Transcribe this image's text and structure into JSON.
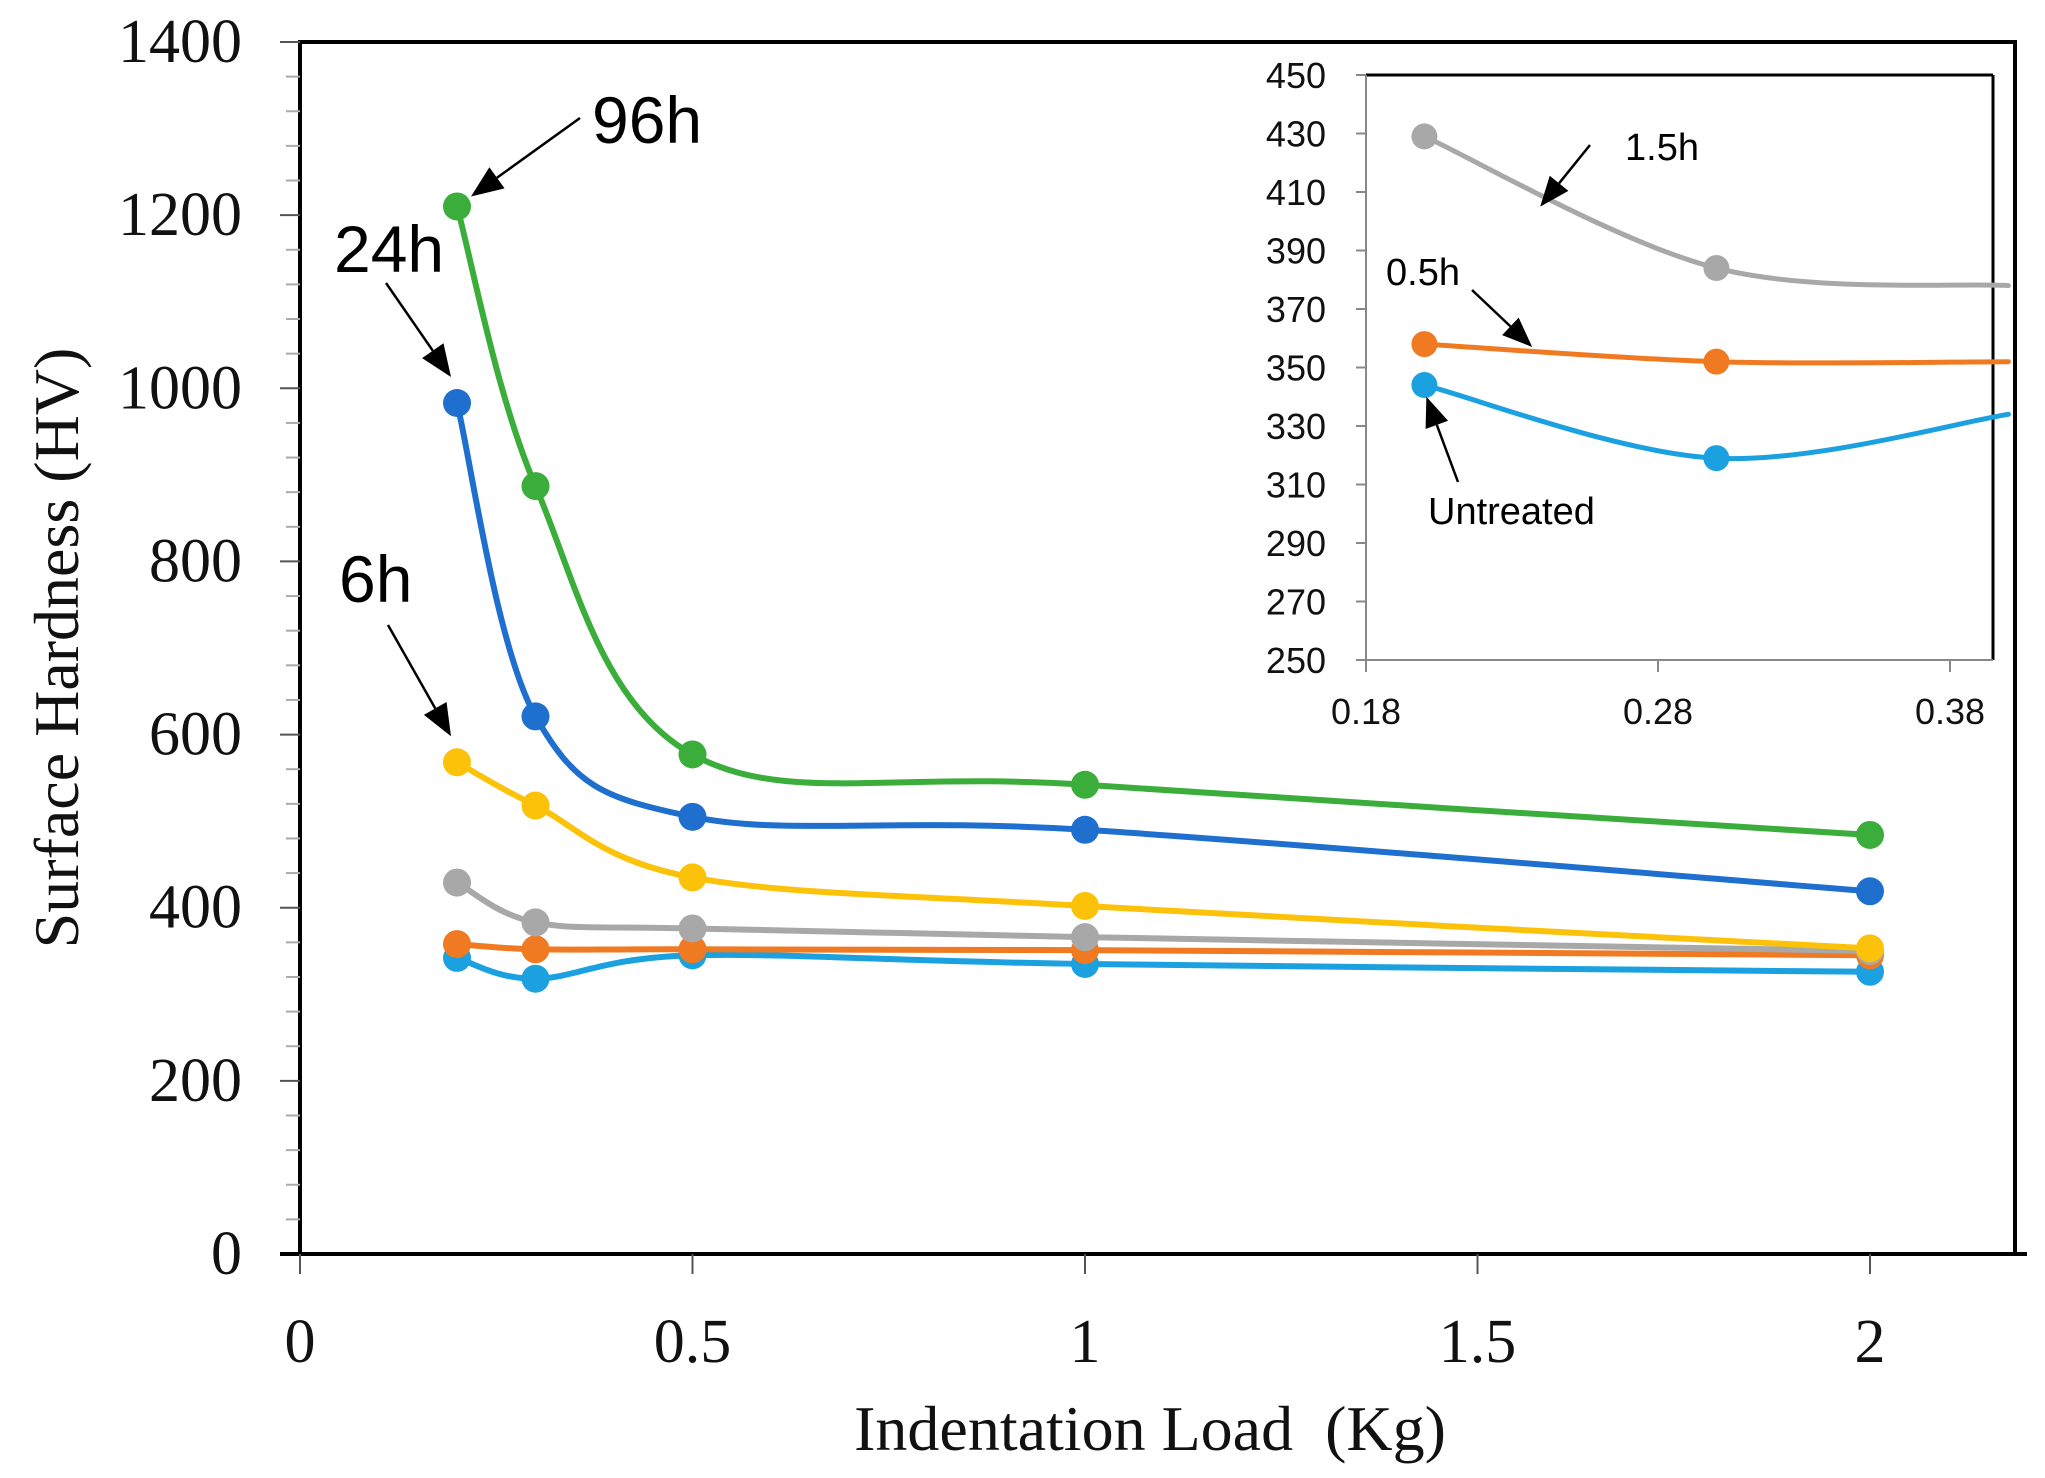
{
  "chart_data": [
    {
      "type": "line",
      "title": "",
      "xlabel": "Indentation Load  (Kg)",
      "ylabel": "Surface Hardness (HV)",
      "xlim": [
        0,
        2.2
      ],
      "ylim": [
        0,
        1400
      ],
      "x_ticks": [
        0,
        0.5,
        1,
        1.5,
        2
      ],
      "x_tick_labels": [
        "0",
        "0.5",
        "1",
        "1.5",
        "2"
      ],
      "y_ticks": [
        0,
        200,
        400,
        600,
        800,
        1000,
        1200,
        1400
      ],
      "y_tick_labels": [
        "0",
        "200",
        "400",
        "600",
        "800",
        "1000",
        "1200",
        "1400"
      ],
      "grid": false,
      "series": [
        {
          "name": "Untreated",
          "color": "#1ba0e0",
          "x": [
            0.2,
            0.3,
            0.5,
            1,
            2
          ],
          "y": [
            342,
            318,
            345,
            335,
            326
          ]
        },
        {
          "name": "0.5h",
          "color": "#f07a22",
          "x": [
            0.2,
            0.3,
            0.5,
            1,
            2
          ],
          "y": [
            358,
            352,
            352,
            351,
            345
          ]
        },
        {
          "name": "1.5h",
          "color": "#a8a8a8",
          "x": [
            0.2,
            0.3,
            0.5,
            1,
            2
          ],
          "y": [
            429,
            383,
            376,
            366,
            350
          ]
        },
        {
          "name": "6h",
          "color": "#fcc20a",
          "x": [
            0.2,
            0.3,
            0.5,
            1,
            2
          ],
          "y": [
            568,
            518,
            435,
            402,
            353
          ]
        },
        {
          "name": "24h",
          "color": "#1f6fcf",
          "x": [
            0.2,
            0.3,
            0.5,
            1,
            2
          ],
          "y": [
            983,
            621,
            505,
            490,
            419
          ]
        },
        {
          "name": "96h",
          "color": "#3aad3a",
          "x": [
            0.2,
            0.3,
            0.5,
            1,
            2
          ],
          "y": [
            1210,
            887,
            577,
            542,
            484
          ]
        }
      ],
      "annotations": [
        {
          "text": "96h",
          "points_to": {
            "x": 0.2,
            "y": 1210
          }
        },
        {
          "text": "24h",
          "points_to": {
            "x": 0.2,
            "y": 983
          }
        },
        {
          "text": "6h",
          "points_to": {
            "x": 0.2,
            "y": 568
          }
        }
      ]
    },
    {
      "type": "line",
      "title": "inset",
      "xlabel": "",
      "ylabel": "",
      "xlim": [
        0.18,
        0.4
      ],
      "ylim": [
        250,
        450
      ],
      "x_ticks": [
        0.18,
        0.28,
        0.38
      ],
      "x_tick_labels": [
        "0.18",
        "0.28",
        "0.38"
      ],
      "y_ticks": [
        250,
        270,
        290,
        310,
        330,
        350,
        370,
        390,
        410,
        430,
        450
      ],
      "y_tick_labels": [
        "250",
        "270",
        "290",
        "310",
        "330",
        "350",
        "370",
        "390",
        "410",
        "430",
        "450"
      ],
      "grid": false,
      "series": [
        {
          "name": "1.5h",
          "color": "#a8a8a8",
          "x": [
            0.2,
            0.3,
            0.4
          ],
          "y": [
            429,
            384,
            378
          ]
        },
        {
          "name": "0.5h",
          "color": "#f07a22",
          "x": [
            0.2,
            0.3,
            0.4
          ],
          "y": [
            358,
            352,
            352
          ]
        },
        {
          "name": "Untreated",
          "color": "#1ba0e0",
          "x": [
            0.2,
            0.3,
            0.4
          ],
          "y": [
            344,
            319,
            334
          ]
        }
      ],
      "markers_on_x": [
        0.2,
        0.3
      ],
      "annotations": [
        {
          "text": "1.5h",
          "points_to": {
            "x": 0.24,
            "y": 405
          }
        },
        {
          "text": "0.5h",
          "points_to": {
            "x": 0.24,
            "y": 357
          }
        },
        {
          "text": "Untreated",
          "points_to": {
            "x": 0.2,
            "y": 340
          }
        }
      ]
    }
  ]
}
